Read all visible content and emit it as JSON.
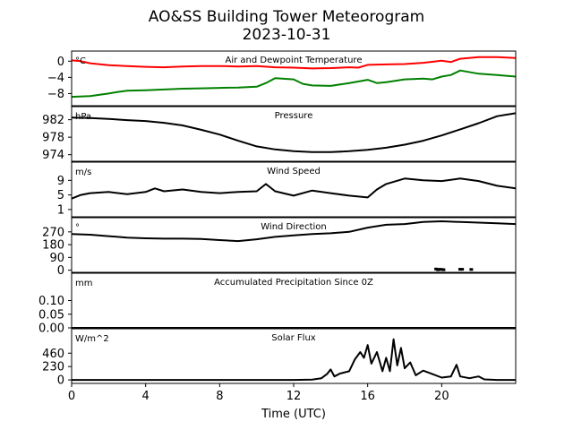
{
  "figure": {
    "title_line1": "AO&SS Building Tower Meteorogram",
    "title_line2": "2023-10-31",
    "xlabel": "Time (UTC)"
  },
  "chart_data": {
    "type": "line",
    "shared_x": {
      "label": "Time (UTC)",
      "unit": "hours",
      "range": [
        0,
        24
      ],
      "ticks": [
        0,
        4,
        8,
        12,
        16,
        20
      ],
      "tick_labels": [
        "0",
        "4",
        "8",
        "12",
        "16",
        "20"
      ]
    },
    "panels": [
      {
        "id": "temperature",
        "title": "Air and Dewpoint Temperature",
        "unit_label": "°C",
        "ylim": [
          -11,
          2.5
        ],
        "yticks": [
          0,
          -4,
          -8
        ],
        "ytick_labels": [
          "0",
          "−4",
          "−8"
        ],
        "series": [
          {
            "color": "#ff0000",
            "points": [
              [
                0,
                0.2
              ],
              [
                0.5,
                0
              ],
              [
                1,
                -0.5
              ],
              [
                2,
                -1
              ],
              [
                3,
                -1.2
              ],
              [
                4,
                -1.4
              ],
              [
                5,
                -1.5
              ],
              [
                6,
                -1.3
              ],
              [
                7,
                -1.2
              ],
              [
                8,
                -1.2
              ],
              [
                9,
                -1.3
              ],
              [
                10,
                -1.2
              ],
              [
                11,
                -1.5
              ],
              [
                12,
                -1.6
              ],
              [
                13,
                -1.8
              ],
              [
                14,
                -1.7
              ],
              [
                15,
                -1.5
              ],
              [
                15.5,
                -1.6
              ],
              [
                16,
                -0.9
              ],
              [
                17,
                -0.8
              ],
              [
                18,
                -0.7
              ],
              [
                19,
                -0.4
              ],
              [
                20,
                0.1
              ],
              [
                20.5,
                -0.2
              ],
              [
                21,
                0.6
              ],
              [
                22,
                1
              ],
              [
                23,
                1
              ],
              [
                24,
                0.8
              ]
            ]
          },
          {
            "color": "#008000",
            "points": [
              [
                0,
                -8.8
              ],
              [
                1,
                -8.6
              ],
              [
                2,
                -8
              ],
              [
                2.5,
                -7.6
              ],
              [
                3,
                -7.3
              ],
              [
                4,
                -7.2
              ],
              [
                5,
                -7
              ],
              [
                6,
                -6.8
              ],
              [
                7,
                -6.7
              ],
              [
                8,
                -6.6
              ],
              [
                9,
                -6.5
              ],
              [
                10,
                -6.3
              ],
              [
                10.5,
                -5.4
              ],
              [
                11,
                -4.2
              ],
              [
                12,
                -4.5
              ],
              [
                12.5,
                -5.6
              ],
              [
                13,
                -6
              ],
              [
                14,
                -6.1
              ],
              [
                15,
                -5.4
              ],
              [
                16,
                -4.6
              ],
              [
                16.5,
                -5.4
              ],
              [
                17,
                -5.2
              ],
              [
                18,
                -4.5
              ],
              [
                19,
                -4.3
              ],
              [
                19.5,
                -4.5
              ],
              [
                20,
                -3.8
              ],
              [
                20.5,
                -3.4
              ],
              [
                21,
                -2.3
              ],
              [
                22,
                -3.1
              ],
              [
                23,
                -3.4
              ],
              [
                24,
                -3.8
              ]
            ]
          }
        ]
      },
      {
        "id": "pressure",
        "title": "Pressure",
        "unit_label": "hPa",
        "ylim": [
          972.5,
          985
        ],
        "yticks": [
          982,
          978,
          974
        ],
        "ytick_labels": [
          "982",
          "978",
          "974"
        ],
        "series": [
          {
            "color": "#000000",
            "points": [
              [
                0,
                982.5
              ],
              [
                1,
                982.4
              ],
              [
                2,
                982.2
              ],
              [
                3,
                981.9
              ],
              [
                4,
                981.7
              ],
              [
                5,
                981.3
              ],
              [
                6,
                980.7
              ],
              [
                7,
                979.7
              ],
              [
                8,
                978.6
              ],
              [
                9,
                977.2
              ],
              [
                10,
                975.9
              ],
              [
                11,
                975.2
              ],
              [
                12,
                974.8
              ],
              [
                13,
                974.6
              ],
              [
                14,
                974.6
              ],
              [
                15,
                974.8
              ],
              [
                16,
                975.1
              ],
              [
                17,
                975.6
              ],
              [
                18,
                976.3
              ],
              [
                19,
                977.2
              ],
              [
                20,
                978.4
              ],
              [
                21,
                979.8
              ],
              [
                22,
                981.2
              ],
              [
                23,
                982.8
              ],
              [
                24,
                983.5
              ]
            ]
          }
        ]
      },
      {
        "id": "wind_speed",
        "title": "Wind Speed",
        "unit_label": "m/s",
        "ylim": [
          -1,
          14
        ],
        "yticks": [
          9,
          5,
          1
        ],
        "ytick_labels": [
          "9",
          "5",
          "1"
        ],
        "series": [
          {
            "color": "#000000",
            "points": [
              [
                0,
                4
              ],
              [
                0.5,
                5
              ],
              [
                1,
                5.5
              ],
              [
                2,
                5.8
              ],
              [
                3,
                5.2
              ],
              [
                4,
                5.8
              ],
              [
                4.5,
                6.8
              ],
              [
                5,
                6
              ],
              [
                6,
                6.5
              ],
              [
                7,
                5.8
              ],
              [
                8,
                5.5
              ],
              [
                9,
                5.8
              ],
              [
                10,
                6
              ],
              [
                10.5,
                8
              ],
              [
                11,
                6
              ],
              [
                12,
                4.8
              ],
              [
                13,
                6.2
              ],
              [
                14,
                5.5
              ],
              [
                15,
                4.8
              ],
              [
                16,
                4.3
              ],
              [
                16.5,
                6.5
              ],
              [
                17,
                8
              ],
              [
                18,
                9.5
              ],
              [
                19,
                9
              ],
              [
                20,
                8.8
              ],
              [
                21,
                9.5
              ],
              [
                22,
                8.8
              ],
              [
                23,
                7.5
              ],
              [
                24,
                6.8
              ]
            ]
          }
        ]
      },
      {
        "id": "wind_direction",
        "title": "Wind Direction",
        "unit_label": "°",
        "ylim": [
          -15,
          370
        ],
        "yticks": [
          270,
          180,
          90,
          0
        ],
        "ytick_labels": [
          "270",
          "180",
          "90",
          "0"
        ],
        "series": [
          {
            "color": "#000000",
            "points": [
              [
                0,
                255
              ],
              [
                1,
                250
              ],
              [
                2,
                240
              ],
              [
                3,
                230
              ],
              [
                4,
                225
              ],
              [
                5,
                222
              ],
              [
                6,
                222
              ],
              [
                7,
                220
              ],
              [
                8,
                212
              ],
              [
                9,
                205
              ],
              [
                10,
                218
              ],
              [
                11,
                235
              ],
              [
                12,
                245
              ],
              [
                13,
                255
              ],
              [
                14,
                260
              ],
              [
                15,
                270
              ],
              [
                16,
                300
              ],
              [
                17,
                320
              ],
              [
                18,
                325
              ],
              [
                19,
                340
              ],
              [
                20,
                345
              ],
              [
                21,
                340
              ],
              [
                22,
                335
              ],
              [
                23,
                330
              ],
              [
                24,
                325
              ]
            ]
          }
        ],
        "scatter": {
          "color": "#000000",
          "points": [
            [
              19.7,
              5
            ],
            [
              19.8,
              0
            ],
            [
              19.9,
              3
            ],
            [
              20.0,
              2
            ],
            [
              20.1,
              0
            ],
            [
              21.0,
              3
            ],
            [
              21.1,
              3
            ],
            [
              21.6,
              2
            ]
          ]
        }
      },
      {
        "id": "precipitation",
        "title": "Accumulated Precipitation Since 0Z",
        "unit_label": "mm",
        "ylim": [
          0,
          0.2
        ],
        "yticks": [
          0.1,
          0.05,
          0.0
        ],
        "ytick_labels": [
          "0.10",
          "0.05",
          "0.00"
        ],
        "series": [
          {
            "color": "#000000",
            "points": [
              [
                0,
                0
              ],
              [
                24,
                0
              ]
            ]
          }
        ]
      },
      {
        "id": "solar_flux",
        "title": "Solar Flux",
        "unit_label": "W/m^2",
        "ylim": [
          -60,
          880
        ],
        "yticks": [
          460,
          230,
          0
        ],
        "ytick_labels": [
          "460",
          "230",
          "0"
        ],
        "series": [
          {
            "color": "#000000",
            "points": [
              [
                0,
                0
              ],
              [
                6,
                0
              ],
              [
                12,
                0
              ],
              [
                13,
                5
              ],
              [
                13.5,
                30
              ],
              [
                13.8,
                100
              ],
              [
                14,
                180
              ],
              [
                14.2,
                60
              ],
              [
                14.5,
                110
              ],
              [
                15,
                150
              ],
              [
                15.3,
                350
              ],
              [
                15.6,
                480
              ],
              [
                15.8,
                380
              ],
              [
                16,
                600
              ],
              [
                16.2,
                280
              ],
              [
                16.5,
                480
              ],
              [
                16.8,
                150
              ],
              [
                17,
                380
              ],
              [
                17.2,
                150
              ],
              [
                17.4,
                700
              ],
              [
                17.6,
                250
              ],
              [
                17.8,
                550
              ],
              [
                18,
                200
              ],
              [
                18.3,
                300
              ],
              [
                18.6,
                80
              ],
              [
                19,
                160
              ],
              [
                19.5,
                100
              ],
              [
                20,
                40
              ],
              [
                20.5,
                60
              ],
              [
                20.8,
                260
              ],
              [
                21,
                60
              ],
              [
                21.5,
                30
              ],
              [
                22,
                60
              ],
              [
                22.3,
                10
              ],
              [
                23,
                0
              ],
              [
                24,
                0
              ]
            ]
          }
        ]
      }
    ]
  }
}
